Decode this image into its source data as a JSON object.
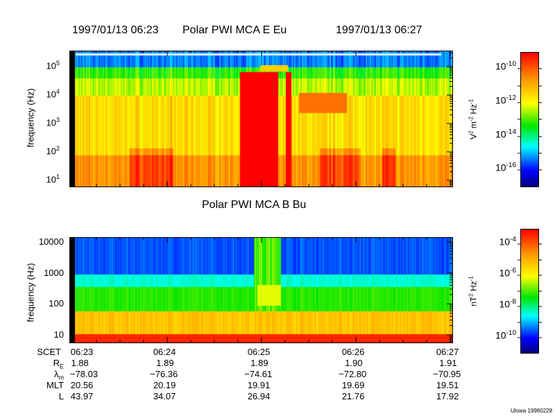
{
  "chart_data": [
    {
      "type": "heatmap",
      "title": "1997/01/13 06:23   Polar PWI MCA E Eu   1997/01/13 06:27",
      "title_parts": [
        "1997/01/13 06:23",
        "Polar PWI MCA E Eu",
        "1997/01/13 06:27"
      ],
      "xlabel": "",
      "ylabel": "frequency (Hz)",
      "yscale": "log",
      "ylim": [
        6,
        300000
      ],
      "yticks": [
        {
          "base": "10",
          "exp": "1",
          "value": 10
        },
        {
          "base": "10",
          "exp": "2",
          "value": 100
        },
        {
          "base": "10",
          "exp": "3",
          "value": 1000
        },
        {
          "base": "10",
          "exp": "4",
          "value": 10000
        },
        {
          "base": "10",
          "exp": "5",
          "value": 100000
        }
      ],
      "xrange": [
        "06:23",
        "06:27"
      ],
      "colorbar": {
        "label_parts": [
          "V",
          "2",
          " m",
          "-2",
          " Hz",
          "-1"
        ],
        "scale": "log",
        "range": [
          1e-17,
          1e-09
        ],
        "ticks": [
          {
            "base": "10",
            "exp": "-10"
          },
          {
            "base": "10",
            "exp": "-12"
          },
          {
            "base": "10",
            "exp": "-14"
          },
          {
            "base": "10",
            "exp": "-16"
          }
        ]
      }
    },
    {
      "type": "heatmap",
      "title": "Polar PWI MCA B Bu",
      "ylabel": "frequency (Hz)",
      "yscale": "log",
      "ylim": [
        6,
        11000
      ],
      "yticks": [
        "10000",
        "1000",
        "100",
        "10"
      ],
      "xrange": [
        "06:23",
        "06:27"
      ],
      "colorbar": {
        "label_parts": [
          "nT",
          "2",
          " Hz",
          "-1"
        ],
        "scale": "log",
        "range": [
          3e-12,
          0.001
        ],
        "ticks": [
          {
            "base": "10",
            "exp": "-4"
          },
          {
            "base": "10",
            "exp": "-6"
          },
          {
            "base": "10",
            "exp": "-8"
          },
          {
            "base": "10",
            "exp": "-10"
          }
        ]
      }
    }
  ],
  "ephemeris": {
    "rows": [
      {
        "label": "SCET",
        "values": [
          "06:23",
          "06:24",
          "06:25",
          "06:26",
          "06:27"
        ]
      },
      {
        "label": "R",
        "sub": "E",
        "values": [
          "1.88",
          "1.89",
          "1.89",
          "1.90",
          "1.91"
        ]
      },
      {
        "label": "λ",
        "sub": "m",
        "values": [
          "−78.03",
          "−76.36",
          "−74.61",
          "−72.80",
          "−70.95"
        ]
      },
      {
        "label": "MLT",
        "values": [
          "20.56",
          "20.19",
          "19.91",
          "19.69",
          "19.51"
        ]
      },
      {
        "label": "L",
        "values": [
          "43.97",
          "34.07",
          "26.94",
          "21.76",
          "17.92"
        ]
      }
    ]
  },
  "footer": "Ulowa 19980228"
}
